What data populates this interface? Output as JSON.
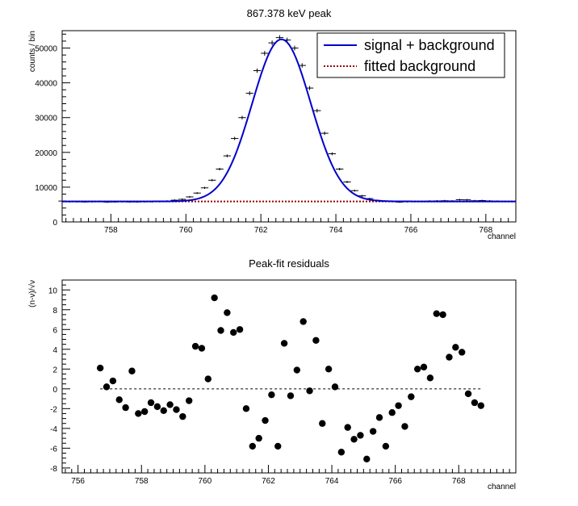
{
  "chart_data": [
    {
      "type": "line",
      "title": "867.378 keV peak",
      "xlabel": "channel",
      "ylabel": "counts / bin",
      "xlim": [
        756.7,
        768.8
      ],
      "ylim": [
        0,
        55000
      ],
      "xticks": [
        758,
        760,
        762,
        764,
        766,
        768
      ],
      "yticks": [
        0,
        10000,
        20000,
        30000,
        40000,
        50000
      ],
      "legend_position": "top-right",
      "legend": [
        {
          "label": "signal + background",
          "color": "#0000cc",
          "style": "solid"
        },
        {
          "label": "fitted background",
          "color": "#990000",
          "style": "dotted"
        }
      ],
      "background_level": 5900,
      "fit": {
        "amplitude": 46600,
        "center": 762.55,
        "sigma": 0.78
      },
      "data_points": {
        "x": [
          756.7,
          756.9,
          757.1,
          757.3,
          757.5,
          757.7,
          757.9,
          758.1,
          758.3,
          758.5,
          758.7,
          758.9,
          759.1,
          759.3,
          759.5,
          759.7,
          759.9,
          760.1,
          760.3,
          760.5,
          760.7,
          760.9,
          761.1,
          761.3,
          761.5,
          761.7,
          761.9,
          762.1,
          762.3,
          762.5,
          762.7,
          762.9,
          763.1,
          763.3,
          763.5,
          763.7,
          763.9,
          764.1,
          764.3,
          764.5,
          764.7,
          764.9,
          765.1,
          765.3,
          765.5,
          765.7,
          765.9,
          766.1,
          766.3,
          766.5,
          766.7,
          766.9,
          767.1,
          767.3,
          767.5,
          767.7,
          767.9,
          768.1,
          768.3,
          768.5,
          768.7
        ],
        "y": [
          6000,
          5850,
          5800,
          5750,
          5800,
          5900,
          5700,
          5750,
          5800,
          5750,
          5750,
          5800,
          5800,
          5850,
          6000,
          6250,
          6500,
          7200,
          8300,
          9800,
          12000,
          15200,
          19000,
          24000,
          30000,
          37000,
          43500,
          48500,
          51500,
          53000,
          52300,
          50000,
          45000,
          38500,
          32000,
          25500,
          19600,
          15200,
          11500,
          9000,
          7500,
          6700,
          6200,
          6000,
          5900,
          5700,
          5800,
          5900,
          5900,
          6000,
          6050,
          6100,
          6050,
          6400,
          6350,
          6100,
          6150,
          6050,
          5950,
          5900,
          5850
        ],
        "error": [
          80,
          77,
          76,
          76,
          76,
          77,
          75,
          76,
          76,
          76,
          76,
          76,
          76,
          76,
          77,
          79,
          81,
          85,
          91,
          99,
          110,
          123,
          138,
          155,
          173,
          192,
          209,
          220,
          227,
          230,
          229,
          224,
          212,
          196,
          179,
          160,
          140,
          123,
          107,
          95,
          87,
          82,
          79,
          77,
          77,
          75,
          76,
          77,
          77,
          77,
          78,
          78,
          78,
          80,
          80,
          78,
          78,
          78,
          77,
          77,
          76
        ]
      }
    },
    {
      "type": "scatter",
      "title": "Peak-fit residuals",
      "xlabel": "channel",
      "ylabel": "(n-ν)/√ν",
      "xlim": [
        755.5,
        769.8
      ],
      "ylim": [
        -8.5,
        11
      ],
      "xticks": [
        756,
        758,
        760,
        762,
        764,
        766,
        768
      ],
      "yticks": [
        -8,
        -6,
        -4,
        -2,
        0,
        2,
        4,
        6,
        8,
        10
      ],
      "zero_line": {
        "from": 756.7,
        "to": 768.7
      },
      "x": [
        756.7,
        756.9,
        757.1,
        757.3,
        757.5,
        757.7,
        757.9,
        758.1,
        758.3,
        758.5,
        758.7,
        758.9,
        759.1,
        759.3,
        759.5,
        759.7,
        759.9,
        760.1,
        760.3,
        760.5,
        760.7,
        760.9,
        761.1,
        761.3,
        761.5,
        761.7,
        761.9,
        762.1,
        762.3,
        762.5,
        762.7,
        762.9,
        763.1,
        763.3,
        763.5,
        763.7,
        763.9,
        764.1,
        764.3,
        764.5,
        764.7,
        764.9,
        765.1,
        765.3,
        765.5,
        765.7,
        765.9,
        766.1,
        766.3,
        766.5,
        766.7,
        766.9,
        767.1,
        767.3,
        767.5,
        767.7,
        767.9,
        768.1,
        768.3,
        768.5,
        768.7
      ],
      "y": [
        2.1,
        0.2,
        0.8,
        -1.1,
        -1.9,
        1.8,
        -2.5,
        -2.3,
        -1.4,
        -1.8,
        -2.2,
        -1.6,
        -2.1,
        -2.8,
        -1.2,
        4.3,
        4.1,
        1.0,
        9.2,
        5.9,
        7.7,
        5.7,
        6.0,
        -2.0,
        -5.8,
        -5.0,
        -3.2,
        -0.6,
        -5.8,
        4.6,
        -0.7,
        1.9,
        6.8,
        -0.2,
        4.9,
        -3.5,
        2.0,
        0.2,
        -6.4,
        -3.9,
        -5.1,
        -4.7,
        -7.1,
        -4.3,
        -2.9,
        -5.8,
        -2.4,
        -1.7,
        -3.8,
        -0.8,
        2.0,
        2.2,
        1.1,
        7.6,
        7.5,
        3.2,
        4.2,
        3.7,
        -0.5,
        -1.4,
        -1.7
      ]
    }
  ]
}
